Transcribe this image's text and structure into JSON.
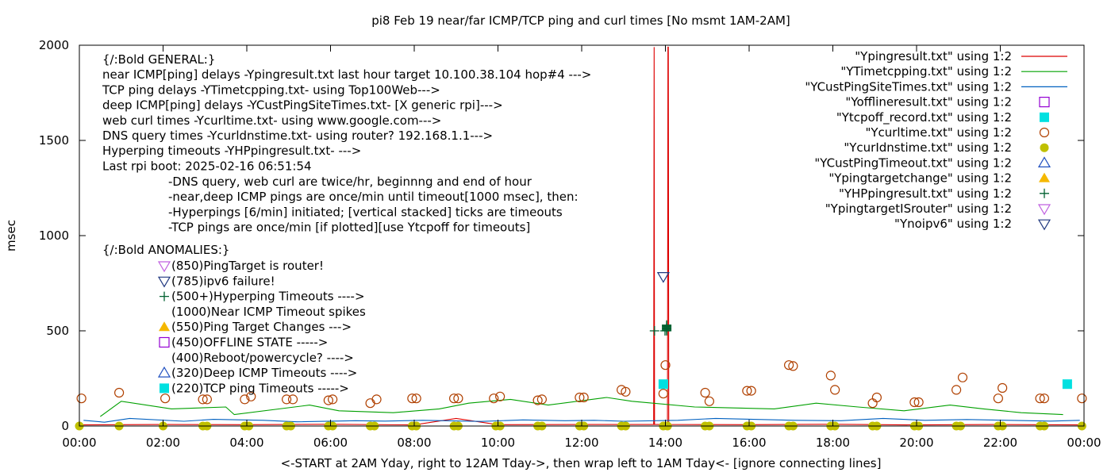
{
  "chart_data": {
    "type": "scatter",
    "title": "pi8 Feb 19  near/far ICMP/TCP ping and curl times [No msmt 1AM-2AM]",
    "xlabel": "<-START at 2AM Yday, right to 12AM Tday->, then wrap left to 1AM Tday<- [ignore connecting lines]",
    "ylabel": "msec",
    "xlim": [
      0,
      24
    ],
    "ylim": [
      0,
      2000
    ],
    "y_ticks": [
      "0",
      "500",
      "1000",
      "1500",
      "2000"
    ],
    "x_ticks": [
      "00:00",
      "02:00",
      "04:00",
      "06:00",
      "08:00",
      "10:00",
      "12:00",
      "14:00",
      "16:00",
      "18:00",
      "20:00",
      "22:00",
      "00:00"
    ],
    "grid": false,
    "legend_placement": "top-right",
    "series": [
      {
        "name": "\"Ypingresult.txt\" using 1:2",
        "style": "line",
        "color": "#dd0000",
        "points": [
          [
            0,
            6
          ],
          [
            2,
            8
          ],
          [
            4,
            7
          ],
          [
            6,
            9
          ],
          [
            8,
            6
          ],
          [
            9,
            40
          ],
          [
            10,
            7
          ],
          [
            12,
            8
          ],
          [
            13.72,
            8
          ],
          [
            13.73,
            1990
          ],
          [
            13.74,
            8
          ],
          [
            14.05,
            8
          ],
          [
            14.06,
            1990
          ],
          [
            14.07,
            1990
          ],
          [
            14.08,
            8
          ],
          [
            16,
            7
          ],
          [
            18,
            9
          ],
          [
            20,
            6
          ],
          [
            22,
            8
          ],
          [
            24,
            6
          ]
        ]
      },
      {
        "name": "\"YTimetcpping.txt\" using 1:2",
        "style": "line",
        "color": "#00a000",
        "points": [
          [
            0.5,
            50
          ],
          [
            1.0,
            130
          ],
          [
            2.2,
            90
          ],
          [
            3.5,
            100
          ],
          [
            3.7,
            60
          ],
          [
            5.5,
            110
          ],
          [
            6.2,
            80
          ],
          [
            7.5,
            70
          ],
          [
            8.6,
            90
          ],
          [
            9.3,
            120
          ],
          [
            10.3,
            140
          ],
          [
            11.2,
            110
          ],
          [
            12.6,
            150
          ],
          [
            13.2,
            130
          ],
          [
            14.7,
            100
          ],
          [
            16.6,
            90
          ],
          [
            17.6,
            120
          ],
          [
            18.6,
            100
          ],
          [
            19.7,
            80
          ],
          [
            20.8,
            110
          ],
          [
            21.6,
            90
          ],
          [
            22.5,
            70
          ],
          [
            23.5,
            60
          ]
        ]
      },
      {
        "name": "\"YCustPingSiteTimes.txt\" using 1:2",
        "style": "line",
        "color": "#0060c0",
        "points": [
          [
            0.1,
            30
          ],
          [
            0.6,
            20
          ],
          [
            1.2,
            40
          ],
          [
            2.5,
            25
          ],
          [
            3.2,
            35
          ],
          [
            4.4,
            30
          ],
          [
            5.2,
            22
          ],
          [
            6.6,
            28
          ],
          [
            7.3,
            26
          ],
          [
            8.2,
            30
          ],
          [
            9.6,
            24
          ],
          [
            10.6,
            32
          ],
          [
            11.6,
            28
          ],
          [
            12.3,
            30
          ],
          [
            13.0,
            25
          ],
          [
            14.3,
            30
          ],
          [
            15.2,
            40
          ],
          [
            16.1,
            35
          ],
          [
            17.1,
            30
          ],
          [
            18.2,
            28
          ],
          [
            19.2,
            40
          ],
          [
            20.2,
            30
          ],
          [
            21.2,
            34
          ],
          [
            22.2,
            30
          ],
          [
            23.2,
            26
          ],
          [
            23.9,
            30
          ]
        ]
      },
      {
        "name": "\"Yofflineresult.txt\" using 1:2",
        "style": "open-square",
        "color": "#9400d3",
        "points": []
      },
      {
        "name": "\"Ytcpoff_record.txt\" using 1:2",
        "style": "filled-square",
        "color": "#00e0e0",
        "points": [
          [
            13.95,
            220
          ],
          [
            23.6,
            220
          ]
        ]
      },
      {
        "name": "\"Ycurltime.txt\" using 1:2",
        "style": "open-circle",
        "color": "#b04000",
        "points": [
          [
            0.05,
            145
          ],
          [
            0.95,
            175
          ],
          [
            2.05,
            145
          ],
          [
            2.95,
            140
          ],
          [
            3.05,
            140
          ],
          [
            3.95,
            140
          ],
          [
            4.1,
            155
          ],
          [
            4.95,
            140
          ],
          [
            5.1,
            140
          ],
          [
            5.95,
            135
          ],
          [
            6.05,
            140
          ],
          [
            6.95,
            120
          ],
          [
            7.1,
            140
          ],
          [
            7.95,
            145
          ],
          [
            8.05,
            145
          ],
          [
            8.95,
            145
          ],
          [
            9.05,
            145
          ],
          [
            9.9,
            145
          ],
          [
            10.05,
            155
          ],
          [
            10.95,
            135
          ],
          [
            11.05,
            140
          ],
          [
            11.95,
            150
          ],
          [
            12.05,
            150
          ],
          [
            12.95,
            190
          ],
          [
            13.05,
            180
          ],
          [
            13.95,
            170
          ],
          [
            14.0,
            320
          ],
          [
            14.95,
            175
          ],
          [
            15.05,
            130
          ],
          [
            15.95,
            185
          ],
          [
            16.05,
            185
          ],
          [
            16.95,
            320
          ],
          [
            17.05,
            315
          ],
          [
            17.95,
            265
          ],
          [
            18.05,
            190
          ],
          [
            18.95,
            120
          ],
          [
            19.05,
            150
          ],
          [
            19.95,
            125
          ],
          [
            20.05,
            125
          ],
          [
            20.95,
            190
          ],
          [
            21.1,
            255
          ],
          [
            21.95,
            145
          ],
          [
            22.05,
            200
          ],
          [
            22.95,
            145
          ],
          [
            23.05,
            145
          ],
          [
            23.95,
            145
          ]
        ]
      },
      {
        "name": "\"YcurIdnstime.txt\" using 1:2",
        "style": "filled-circle",
        "color": "#c0c000",
        "points": [
          [
            0.0,
            0
          ],
          [
            0.95,
            0
          ],
          [
            2.0,
            0
          ],
          [
            2.95,
            0
          ],
          [
            3.05,
            0
          ],
          [
            3.95,
            0
          ],
          [
            4.05,
            0
          ],
          [
            4.95,
            0
          ],
          [
            5.05,
            0
          ],
          [
            5.95,
            0
          ],
          [
            6.05,
            0
          ],
          [
            6.95,
            0
          ],
          [
            7.05,
            0
          ],
          [
            7.95,
            0
          ],
          [
            8.05,
            0
          ],
          [
            8.95,
            0
          ],
          [
            9.05,
            0
          ],
          [
            9.95,
            0
          ],
          [
            10.05,
            0
          ],
          [
            10.95,
            0
          ],
          [
            11.05,
            0
          ],
          [
            11.95,
            0
          ],
          [
            12.05,
            0
          ],
          [
            12.95,
            0
          ],
          [
            13.05,
            0
          ],
          [
            13.95,
            0
          ],
          [
            14.05,
            0
          ],
          [
            14.95,
            0
          ],
          [
            15.05,
            0
          ],
          [
            15.95,
            0
          ],
          [
            16.05,
            0
          ],
          [
            16.95,
            0
          ],
          [
            17.05,
            0
          ],
          [
            17.95,
            0
          ],
          [
            18.05,
            0
          ],
          [
            18.95,
            0
          ],
          [
            19.05,
            0
          ],
          [
            19.95,
            0
          ],
          [
            20.05,
            0
          ],
          [
            20.95,
            0
          ],
          [
            21.05,
            0
          ],
          [
            21.95,
            0
          ],
          [
            22.05,
            0
          ],
          [
            22.95,
            0
          ],
          [
            23.05,
            0
          ],
          [
            23.95,
            0
          ]
        ]
      },
      {
        "name": "\"YCustPingTimeout.txt\" using 1:2",
        "style": "open-triangle-up",
        "color": "#2050c0",
        "points": []
      },
      {
        "name": "\"Ypingtargetchange\" using 1:2",
        "style": "filled-triangle-up",
        "color": "#f5b800",
        "points": []
      },
      {
        "name": "\"YHPpingresult.txt\" using 1:2",
        "style": "plus",
        "color": "#006030",
        "points": [
          [
            13.74,
            500
          ],
          [
            13.99,
            500
          ],
          [
            14.03,
            500
          ],
          [
            14.03,
            505
          ],
          [
            14.03,
            510
          ],
          [
            14.03,
            515
          ],
          [
            14.03,
            520
          ],
          [
            14.03,
            525
          ],
          [
            14.03,
            530
          ]
        ]
      },
      {
        "name": "\"YpingtargetISrouter\" using 1:2",
        "style": "open-triangle-down",
        "color": "#c060e0",
        "points": []
      },
      {
        "name": "\"Ynoipv6\" using 1:2",
        "style": "open-triangle-down",
        "color": "#203880",
        "points": [
          [
            13.95,
            785
          ]
        ]
      }
    ],
    "annotations": {
      "general": [
        "{/:Bold GENERAL:}",
        "near ICMP[ping] delays -Ypingresult.txt last hour target 10.100.38.104 hop#4 --->",
        "TCP ping delays -YTimetcpping.txt- using Top100Web--->",
        "deep ICMP[ping] delays -YCustPingSiteTimes.txt- [X generic rpi]--->",
        "web curl times -Ycurltime.txt- using www.google.com--->",
        "DNS query times -Ycurldnstime.txt- using router? 192.168.1.1--->",
        "Hyperping timeouts -YHPpingresult.txt- --->",
        "Last rpi boot: 2025-02-16 06:51:54"
      ],
      "notes": [
        "-DNS query, web curl are twice/hr, beginnng and end of hour",
        "-near,deep ICMP pings are once/min until timeout[1000 msec], then:",
        "  -Hyperpings [6/min] initiated; [vertical stacked] ticks are timeouts",
        "-TCP pings are once/min [if plotted][use Ytcpoff for timeouts]"
      ],
      "anomalies_title": "{/:Bold ANOMALIES:}",
      "anomalies": [
        {
          "marker": "open-triangle-down",
          "color": "#c060e0",
          "text": "(850)PingTarget is router!"
        },
        {
          "marker": "open-triangle-down",
          "color": "#203880",
          "text": "(785)ipv6 failure!"
        },
        {
          "marker": "plus",
          "color": "#006030",
          "text": "(500+)Hyperping Timeouts ---->"
        },
        {
          "marker": "none",
          "color": "#000000",
          "text": "(1000)Near ICMP Timeout spikes"
        },
        {
          "marker": "filled-triangle-up",
          "color": "#f5b800",
          "text": "(550)Ping Target Changes --->"
        },
        {
          "marker": "open-square",
          "color": "#9400d3",
          "text": "(450)OFFLINE STATE ----->"
        },
        {
          "marker": "none",
          "color": "#000000",
          "text": "(400)Reboot/powercycle? ---->"
        },
        {
          "marker": "open-triangle-up",
          "color": "#2050c0",
          "text": "(320)Deep ICMP Timeouts ---->"
        },
        {
          "marker": "filled-square",
          "color": "#00e0e0",
          "text": "(220)TCP ping Timeouts ----->"
        }
      ]
    }
  }
}
